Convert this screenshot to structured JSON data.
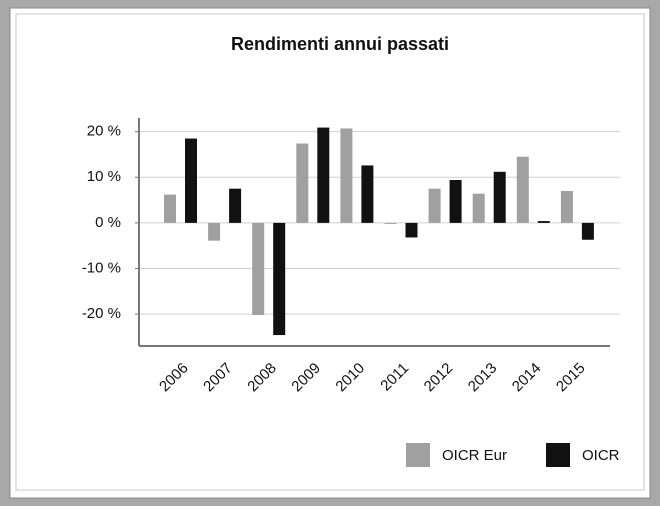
{
  "chart_data": {
    "type": "bar",
    "title": "Rendimenti annui passati",
    "categories": [
      "2006",
      "2007",
      "2008",
      "2009",
      "2010",
      "2011",
      "2012",
      "2013",
      "2014",
      "2015"
    ],
    "series": [
      {
        "name": "OICR Eur",
        "color": "#a0a0a0",
        "values": [
          6.2,
          -3.9,
          -20.2,
          17.4,
          20.7,
          -0.2,
          7.5,
          6.4,
          14.5,
          7.0
        ]
      },
      {
        "name": "OICR",
        "color": "#111111",
        "values": [
          18.5,
          7.5,
          -24.6,
          20.9,
          12.6,
          -3.2,
          9.4,
          11.2,
          0.4,
          -3.7
        ]
      }
    ],
    "ylim": [
      -27,
      23
    ],
    "yticks": [
      {
        "value": -20,
        "label": "-20 %"
      },
      {
        "value": -10,
        "label": "-10 %"
      },
      {
        "value": 0,
        "label": "0 %"
      },
      {
        "value": 10,
        "label": "10 %"
      },
      {
        "value": 20,
        "label": "20 %"
      }
    ],
    "grid": true,
    "legend": "bottom-right"
  }
}
